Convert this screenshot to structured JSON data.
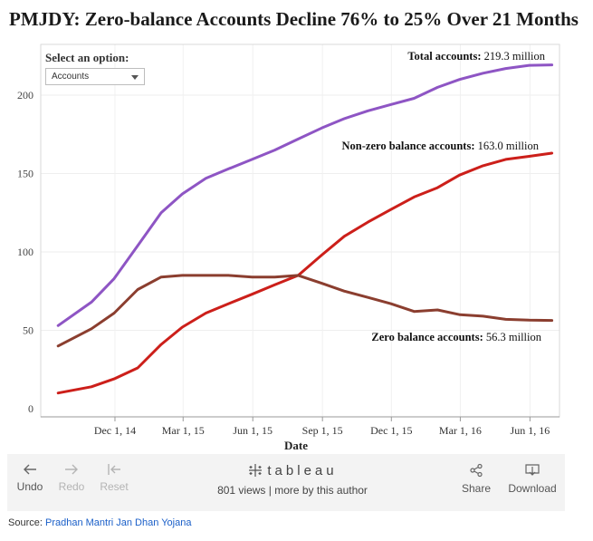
{
  "title": "PMJDY: Zero-balance Accounts Decline 76% to 25% Over 21 Months",
  "selector": {
    "label": "Select an option:",
    "value": "Accounts"
  },
  "chart_data": {
    "type": "line",
    "xlabel": "Date",
    "ylabel": "",
    "x_ticks": [
      "Dec 1, 14",
      "Mar 1, 15",
      "Jun 1, 15",
      "Sep 1, 15",
      "Dec 1, 15",
      "Mar 1, 16",
      "Jun 1, 16"
    ],
    "y_ticks": [
      0,
      50,
      100,
      150,
      200
    ],
    "ylim": [
      0,
      225
    ],
    "grid": true,
    "x": [
      "2014-09-17",
      "2014-10-31",
      "2014-11-30",
      "2014-12-31",
      "2015-01-31",
      "2015-02-28",
      "2015-03-31",
      "2015-04-30",
      "2015-05-31",
      "2015-06-30",
      "2015-07-31",
      "2015-08-31",
      "2015-09-30",
      "2015-10-31",
      "2015-11-30",
      "2015-12-31",
      "2016-01-31",
      "2016-02-29",
      "2016-03-31",
      "2016-04-30",
      "2016-05-31",
      "2016-06-30"
    ],
    "series": [
      {
        "name": "Total accounts",
        "color": "#8e55c4",
        "values": [
          53,
          68,
          83,
          104,
          125,
          137,
          147,
          153,
          159,
          165,
          172,
          179,
          185,
          190,
          194,
          198,
          205,
          210,
          214,
          217,
          219,
          219.3
        ],
        "annotation": "Total accounts: 219.3 million"
      },
      {
        "name": "Non-zero balance accounts",
        "color": "#cc1f1a",
        "values": [
          10,
          14,
          19,
          26,
          41,
          52,
          61,
          67,
          73,
          79,
          85,
          98,
          110,
          119,
          127,
          135,
          141,
          149,
          155,
          159,
          161,
          163.0
        ],
        "annotation": "Non-zero balance accounts: 163.0 million"
      },
      {
        "name": "Zero balance accounts",
        "color": "#8b3e2f",
        "values": [
          40,
          51,
          61,
          76,
          84,
          85,
          85,
          85,
          84,
          84,
          85,
          80,
          75,
          71,
          67,
          62,
          63,
          60,
          59,
          57,
          56.5,
          56.3
        ],
        "annotation": "Zero balance accounts: 56.3 million"
      }
    ]
  },
  "toolbar": {
    "undo": "Undo",
    "redo": "Redo",
    "reset": "Reset",
    "logo": "tableau",
    "meta": "801 views | more by this author",
    "share": "Share",
    "download": "Download"
  },
  "source": {
    "label": "Source:",
    "link": "Pradhan Mantri Jan Dhan Yojana"
  }
}
